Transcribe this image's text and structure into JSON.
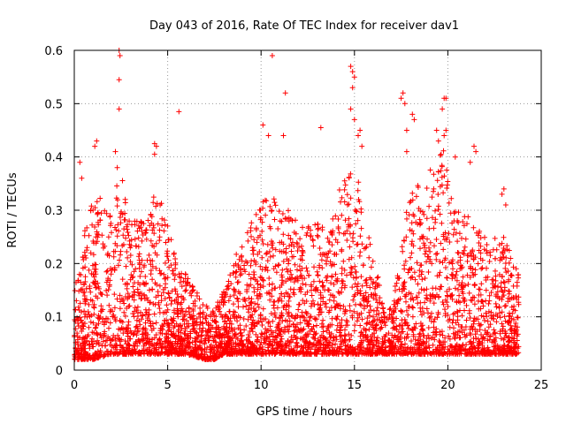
{
  "chart_data": {
    "type": "scatter",
    "title": "Day 043 of 2016, Rate Of TEC Index for receiver dav1",
    "xlabel": "GPS time / hours",
    "ylabel": "ROTI / TECUs",
    "xlim": [
      0,
      25
    ],
    "ylim": [
      0,
      0.6
    ],
    "xticks": [
      0,
      5,
      10,
      15,
      20,
      25
    ],
    "yticks": [
      0,
      0.1,
      0.2,
      0.3,
      0.4,
      0.5,
      0.6
    ],
    "xtick_labels": [
      "0",
      "5",
      "10",
      "15",
      "20",
      "25"
    ],
    "ytick_labels": [
      "0",
      "0.1",
      "0.2",
      "0.3",
      "0.4",
      "0.5",
      "0.6"
    ],
    "grid": true,
    "grid_style": "dotted",
    "marker": "+",
    "color": "#ff0000",
    "legend": "none",
    "x_range_of_data": [
      0,
      23.8
    ],
    "envelope": {
      "x": [
        0,
        1,
        2,
        2.5,
        3,
        4,
        4.5,
        5,
        5.5,
        6,
        7,
        7.5,
        8,
        9,
        10,
        10.5,
        11,
        11.5,
        12,
        13,
        14,
        14.5,
        15,
        15.5,
        16,
        16.7,
        17.3,
        17.8,
        18,
        19,
        19.8,
        20.3,
        21,
        21.5,
        22,
        23,
        23.8
      ],
      "upper": [
        0.15,
        0.35,
        0.3,
        0.4,
        0.28,
        0.3,
        0.35,
        0.28,
        0.2,
        0.18,
        0.12,
        0.12,
        0.15,
        0.25,
        0.32,
        0.35,
        0.3,
        0.3,
        0.28,
        0.28,
        0.3,
        0.4,
        0.42,
        0.3,
        0.22,
        0.1,
        0.18,
        0.3,
        0.35,
        0.38,
        0.42,
        0.3,
        0.3,
        0.28,
        0.25,
        0.25,
        0.18
      ],
      "lower": [
        0.02,
        0.02,
        0.03,
        0.03,
        0.03,
        0.03,
        0.03,
        0.03,
        0.03,
        0.03,
        0.02,
        0.02,
        0.03,
        0.03,
        0.03,
        0.03,
        0.03,
        0.03,
        0.03,
        0.03,
        0.03,
        0.03,
        0.03,
        0.03,
        0.03,
        0.03,
        0.03,
        0.03,
        0.03,
        0.03,
        0.03,
        0.03,
        0.03,
        0.03,
        0.03,
        0.03,
        0.03
      ]
    },
    "outliers": [
      [
        0.3,
        0.39
      ],
      [
        0.4,
        0.36
      ],
      [
        1.1,
        0.42
      ],
      [
        1.2,
        0.43
      ],
      [
        2.2,
        0.41
      ],
      [
        2.3,
        0.38
      ],
      [
        2.4,
        0.6
      ],
      [
        2.45,
        0.59
      ],
      [
        2.4,
        0.545
      ],
      [
        2.4,
        0.49
      ],
      [
        4.3,
        0.425
      ],
      [
        4.4,
        0.42
      ],
      [
        4.3,
        0.405
      ],
      [
        5.6,
        0.485
      ],
      [
        10.1,
        0.46
      ],
      [
        10.4,
        0.44
      ],
      [
        10.6,
        0.59
      ],
      [
        11.3,
        0.52
      ],
      [
        11.2,
        0.44
      ],
      [
        13.2,
        0.455
      ],
      [
        14.8,
        0.57
      ],
      [
        14.9,
        0.56
      ],
      [
        15.0,
        0.55
      ],
      [
        14.9,
        0.53
      ],
      [
        14.8,
        0.49
      ],
      [
        15.0,
        0.47
      ],
      [
        15.3,
        0.45
      ],
      [
        15.4,
        0.42
      ],
      [
        15.2,
        0.44
      ],
      [
        17.6,
        0.52
      ],
      [
        17.5,
        0.51
      ],
      [
        17.7,
        0.5
      ],
      [
        18.1,
        0.48
      ],
      [
        18.2,
        0.47
      ],
      [
        17.8,
        0.45
      ],
      [
        17.8,
        0.41
      ],
      [
        19.4,
        0.45
      ],
      [
        19.8,
        0.51
      ],
      [
        19.9,
        0.51
      ],
      [
        19.7,
        0.49
      ],
      [
        19.9,
        0.45
      ],
      [
        19.8,
        0.44
      ],
      [
        19.5,
        0.43
      ],
      [
        20.4,
        0.4
      ],
      [
        21.4,
        0.42
      ],
      [
        21.5,
        0.41
      ],
      [
        21.2,
        0.39
      ],
      [
        22.9,
        0.33
      ],
      [
        23.0,
        0.34
      ],
      [
        23.1,
        0.31
      ]
    ]
  }
}
